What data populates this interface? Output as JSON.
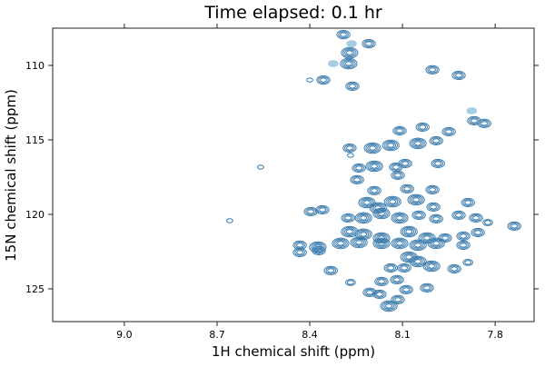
{
  "chart_data": {
    "type": "contour",
    "title": "Time elapsed: 0.1 hr",
    "xlabel": "1H chemical shift (ppm)",
    "ylabel": "15N chemical shift (ppm)",
    "xlim": [
      9.232,
      7.674
    ],
    "ylim": [
      127.2,
      107.5
    ],
    "x_reversed": true,
    "y_reversed": true,
    "xticks": [
      9.0,
      8.7,
      8.4,
      8.1,
      7.8
    ],
    "xtick_labels": [
      "9.0",
      "8.7",
      "8.4",
      "8.1",
      "7.8"
    ],
    "yticks": [
      110,
      115,
      120,
      125
    ],
    "ytick_labels": [
      "110",
      "115",
      "120",
      "125"
    ],
    "grid": false,
    "colors": {
      "contour": "#3a7bac",
      "contour_faint": "#a6cee3"
    },
    "peaks_columns": [
      "1H_ppm",
      "15N_ppm",
      "levels",
      "faint"
    ],
    "peaks": [
      [
        8.291,
        107.93,
        3,
        0
      ],
      [
        8.265,
        108.54,
        2,
        1
      ],
      [
        8.209,
        108.54,
        3,
        0
      ],
      [
        8.271,
        109.15,
        4,
        0
      ],
      [
        8.274,
        109.88,
        4,
        0
      ],
      [
        8.324,
        109.88,
        2,
        1
      ],
      [
        8.356,
        110.98,
        3,
        0
      ],
      [
        8.4,
        110.98,
        1,
        0
      ],
      [
        8.262,
        111.4,
        3,
        0
      ],
      [
        8.003,
        110.3,
        3,
        0
      ],
      [
        7.918,
        110.67,
        3,
        0
      ],
      [
        7.876,
        113.05,
        2,
        1
      ],
      [
        7.868,
        113.72,
        3,
        0
      ],
      [
        8.109,
        114.39,
        3,
        0
      ],
      [
        8.035,
        114.15,
        3,
        0
      ],
      [
        7.95,
        114.45,
        3,
        0
      ],
      [
        7.835,
        113.9,
        3,
        0
      ],
      [
        8.271,
        115.55,
        3,
        0
      ],
      [
        8.197,
        115.55,
        4,
        0
      ],
      [
        8.138,
        115.37,
        4,
        0
      ],
      [
        8.05,
        115.24,
        4,
        0
      ],
      [
        7.991,
        115.06,
        3,
        0
      ],
      [
        8.241,
        116.89,
        3,
        0
      ],
      [
        8.191,
        116.77,
        4,
        0
      ],
      [
        8.121,
        116.83,
        3,
        0
      ],
      [
        8.091,
        116.59,
        3,
        0
      ],
      [
        7.985,
        116.59,
        3,
        0
      ],
      [
        8.247,
        117.68,
        3,
        0
      ],
      [
        8.115,
        117.38,
        3,
        0
      ],
      [
        8.003,
        118.35,
        3,
        0
      ],
      [
        8.191,
        118.41,
        3,
        0
      ],
      [
        8.085,
        118.29,
        3,
        0
      ],
      [
        8.215,
        119.21,
        4,
        0
      ],
      [
        8.179,
        119.57,
        4,
        0
      ],
      [
        8.132,
        119.15,
        4,
        0
      ],
      [
        8.056,
        119.02,
        4,
        0
      ],
      [
        8.0,
        119.51,
        3,
        0
      ],
      [
        7.888,
        119.21,
        3,
        0
      ],
      [
        8.359,
        119.7,
        3,
        0
      ],
      [
        8.397,
        119.82,
        3,
        0
      ],
      [
        8.276,
        120.24,
        3,
        0
      ],
      [
        8.226,
        120.24,
        4,
        0
      ],
      [
        8.168,
        119.94,
        4,
        0
      ],
      [
        8.109,
        120.24,
        4,
        0
      ],
      [
        8.047,
        120.06,
        3,
        0
      ],
      [
        7.991,
        120.3,
        3,
        0
      ],
      [
        7.918,
        120.06,
        3,
        0
      ],
      [
        7.862,
        120.24,
        3,
        0
      ],
      [
        7.824,
        120.55,
        2,
        0
      ],
      [
        7.738,
        120.79,
        3,
        0
      ],
      [
        8.271,
        121.16,
        4,
        0
      ],
      [
        8.226,
        121.34,
        4,
        0
      ],
      [
        8.168,
        121.59,
        4,
        0
      ],
      [
        8.079,
        121.16,
        4,
        0
      ],
      [
        8.021,
        121.59,
        4,
        0
      ],
      [
        7.962,
        121.59,
        3,
        0
      ],
      [
        7.903,
        121.46,
        3,
        0
      ],
      [
        7.856,
        121.22,
        3,
        0
      ],
      [
        8.432,
        122.07,
        3,
        0
      ],
      [
        8.374,
        122.2,
        4,
        0
      ],
      [
        8.3,
        121.95,
        4,
        0
      ],
      [
        8.241,
        121.89,
        4,
        0
      ],
      [
        8.168,
        121.95,
        4,
        0
      ],
      [
        8.109,
        121.95,
        4,
        0
      ],
      [
        8.05,
        122.07,
        4,
        0
      ],
      [
        7.991,
        121.95,
        4,
        0
      ],
      [
        7.903,
        122.07,
        3,
        0
      ],
      [
        8.432,
        122.56,
        3,
        0
      ],
      [
        8.371,
        122.44,
        3,
        0
      ],
      [
        8.079,
        122.87,
        4,
        0
      ],
      [
        8.05,
        123.17,
        4,
        0
      ],
      [
        8.006,
        123.48,
        4,
        0
      ],
      [
        7.932,
        123.66,
        3,
        0
      ],
      [
        8.138,
        123.6,
        3,
        0
      ],
      [
        8.094,
        123.6,
        3,
        0
      ],
      [
        7.888,
        123.23,
        2,
        0
      ],
      [
        8.332,
        123.78,
        3,
        0
      ],
      [
        8.268,
        124.57,
        2,
        0
      ],
      [
        8.168,
        124.51,
        3,
        0
      ],
      [
        8.118,
        124.39,
        3,
        0
      ],
      [
        8.206,
        125.24,
        3,
        0
      ],
      [
        8.144,
        126.16,
        4,
        0
      ],
      [
        8.021,
        124.94,
        3,
        0
      ],
      [
        8.088,
        125.06,
        3,
        0
      ],
      [
        8.174,
        125.37,
        3,
        0
      ],
      [
        8.115,
        125.73,
        3,
        0
      ],
      [
        8.559,
        116.83,
        1,
        0
      ],
      [
        8.659,
        120.43,
        1,
        0
      ],
      [
        8.268,
        116.04,
        1,
        0
      ]
    ]
  }
}
